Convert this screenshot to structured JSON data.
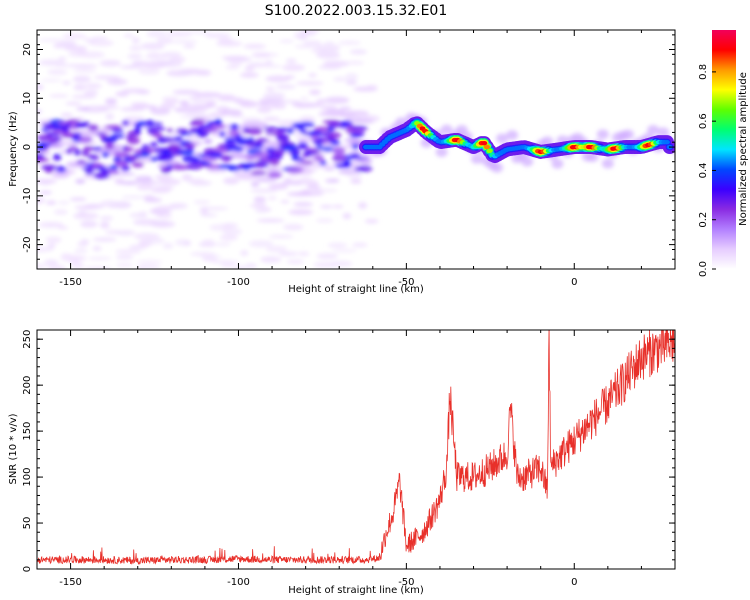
{
  "figure": {
    "title": "S100.2022.003.15.32.E01"
  },
  "chart_data": [
    {
      "type": "heatmap",
      "title": "",
      "xlabel": "Height of straight line (km)",
      "ylabel": "Frequency (Hz)",
      "xlim": [
        -160,
        30
      ],
      "ylim": [
        -25,
        24
      ],
      "x_ticks": [
        -150,
        -100,
        -50,
        0
      ],
      "x_tick_labels": [
        "-150",
        "-100",
        "-50",
        "0"
      ],
      "y_ticks": [
        -20,
        -10,
        0,
        10,
        20
      ],
      "y_tick_labels": [
        "-20",
        "-10",
        "0",
        "10",
        "20"
      ],
      "colorbar": {
        "label": "Normalized spectral amplitude",
        "range": [
          0,
          0.97
        ],
        "ticks": [
          0.0,
          0.2,
          0.4,
          0.6,
          0.8
        ],
        "tick_labels": [
          "0.0",
          "0.2",
          "0.4",
          "0.6",
          "0.8"
        ],
        "colors": [
          "#ffffff",
          "#e6ccff",
          "#b27fff",
          "#8a2be2",
          "#3a00ff",
          "#0048ff",
          "#00e5ff",
          "#00ff70",
          "#5fff00",
          "#ffff00",
          "#ff9900",
          "#ff0000",
          "#f2005a"
        ]
      },
      "ridge_centerline": {
        "x": [
          -160,
          -150,
          -140,
          -130,
          -120,
          -110,
          -100,
          -90,
          -80,
          -70,
          -62,
          -58,
          -55,
          -50,
          -47,
          -44,
          -40,
          -35,
          -30,
          -27,
          -24,
          -20,
          -15,
          -10,
          -5,
          0,
          5,
          10,
          15,
          20,
          25,
          28
        ],
        "y": [
          0,
          0.5,
          -1,
          1,
          -0.5,
          1,
          0,
          -1,
          0,
          1,
          0,
          0,
          2,
          3.5,
          5,
          3,
          1,
          1.5,
          0,
          1,
          -2,
          -0.5,
          0,
          -1,
          -0.5,
          0,
          0,
          -0.5,
          0,
          0,
          1,
          1
        ]
      },
      "note": "Broad diffuse purple energy across -160 to -62 km; narrow high-amplitude ridge near 0 Hz from -62 to 30 km with red peaks near -35, -27, -10, 12, 22 km."
    },
    {
      "type": "line",
      "title": "",
      "xlabel": "Height of straight line (km)",
      "ylabel": "SNR (10 * v/v)",
      "xlim": [
        -160,
        30
      ],
      "ylim": [
        0,
        260
      ],
      "x_ticks": [
        -150,
        -100,
        -50,
        0
      ],
      "x_tick_labels": [
        "-150",
        "-100",
        "-50",
        "0"
      ],
      "y_ticks": [
        0,
        50,
        100,
        150,
        200,
        250
      ],
      "y_tick_labels": [
        "0",
        "50",
        "100",
        "150",
        "200",
        "250"
      ],
      "color": "#e8302a",
      "series": [
        {
          "name": "SNR",
          "x": [
            -160,
            -150,
            -140,
            -130,
            -120,
            -110,
            -100,
            -90,
            -80,
            -70,
            -62,
            -58,
            -56,
            -54,
            -52,
            -50,
            -45,
            -42,
            -40,
            -38,
            -37,
            -35,
            -30,
            -25,
            -20,
            -19,
            -17,
            -15,
            -10,
            -8,
            -7.5,
            -7,
            -5,
            0,
            5,
            10,
            15,
            20,
            25,
            30
          ],
          "y": [
            10,
            10,
            10,
            9,
            10,
            10,
            11,
            10,
            10,
            10,
            10,
            12,
            40,
            60,
            95,
            25,
            40,
            60,
            75,
            110,
            190,
            100,
            100,
            110,
            125,
            175,
            100,
            100,
            110,
            85,
            250,
            110,
            120,
            140,
            160,
            180,
            205,
            230,
            240,
            248
          ]
        }
      ]
    }
  ]
}
